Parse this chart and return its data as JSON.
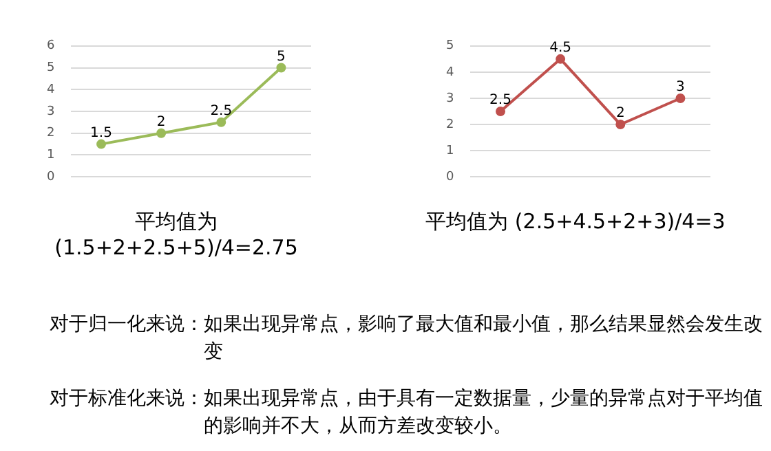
{
  "chart_data": [
    {
      "type": "line",
      "categories": [
        null,
        null,
        null,
        null
      ],
      "series": [
        {
          "color": "#9bbb59",
          "values": [
            1.5,
            2,
            2.5,
            5
          ]
        }
      ],
      "ylim": [
        0,
        6
      ],
      "yticks": [
        0,
        1,
        2,
        3,
        4,
        5,
        6
      ],
      "grid": "y",
      "tick_labels": "y",
      "marker": "circle",
      "data_labels": true,
      "legend": false,
      "annotations": [
        "平均值为(1.5+2+2.5+5)/4=2.75"
      ]
    },
    {
      "type": "line",
      "categories": [
        null,
        null,
        null,
        null
      ],
      "series": [
        {
          "color": "#c0504d",
          "values": [
            2.5,
            4.5,
            2,
            3
          ]
        }
      ],
      "ylim": [
        0,
        5
      ],
      "yticks": [
        0,
        1,
        2,
        3,
        4,
        5
      ],
      "grid": "y",
      "tick_labels": "y",
      "marker": "circle",
      "data_labels": true,
      "legend": false,
      "annotations": [
        "平均值为 (2.5+4.5+2+3)/4=3"
      ]
    },
    {
      "type": "other",
      "annotations": [
        "对于归一化来说：如果出现异常点，影响了最大值和最小值，那么结果显然会发生改变",
        "对于标准化来说：如果出现异常点，由于具有一定数据量，少量的异常点对于平均值的影响并不大，从而方差改变较小。"
      ]
    }
  ]
}
